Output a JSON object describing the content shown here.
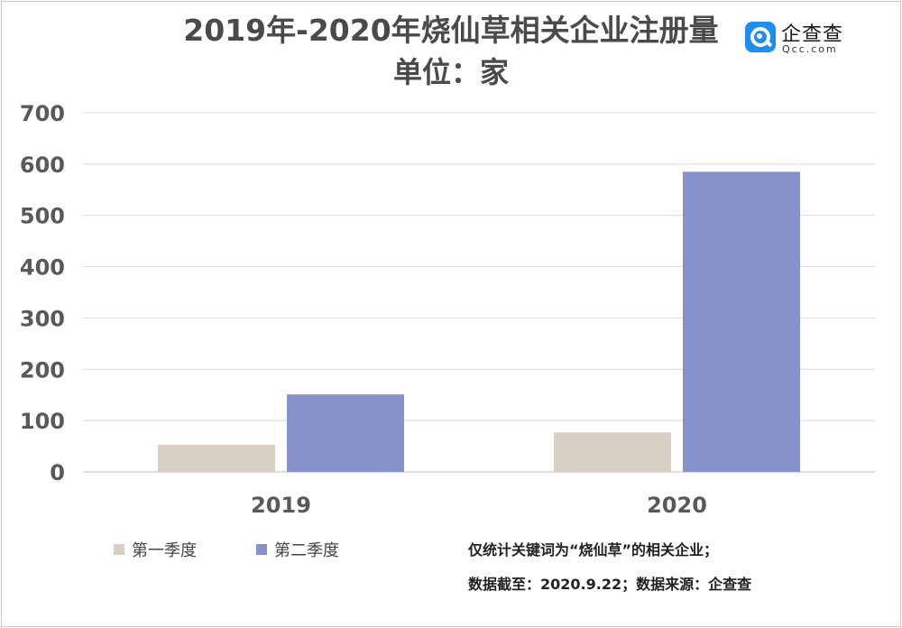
{
  "logo": {
    "name": "企查查",
    "url": "Qcc.com"
  },
  "notes": [
    "仅统计关键词为“烧仙草”的相关企业；",
    "数据截至：2020.9.22；数据来源：企查查"
  ],
  "chart_data": {
    "type": "bar",
    "title": "2019年-2020年烧仙草相关企业注册量",
    "subtitle": "单位：家",
    "categories": [
      "2019",
      "2020"
    ],
    "series": [
      {
        "name": "第一季度",
        "values": [
          53,
          77
        ],
        "color": "#d9d0c5"
      },
      {
        "name": "第二季度",
        "values": [
          151,
          585
        ],
        "color": "#8791cc"
      }
    ],
    "ylim": [
      0,
      700
    ],
    "yticks": [
      0,
      100,
      200,
      300,
      400,
      500,
      600,
      700
    ],
    "grid": true,
    "legend": "bottom-left"
  }
}
